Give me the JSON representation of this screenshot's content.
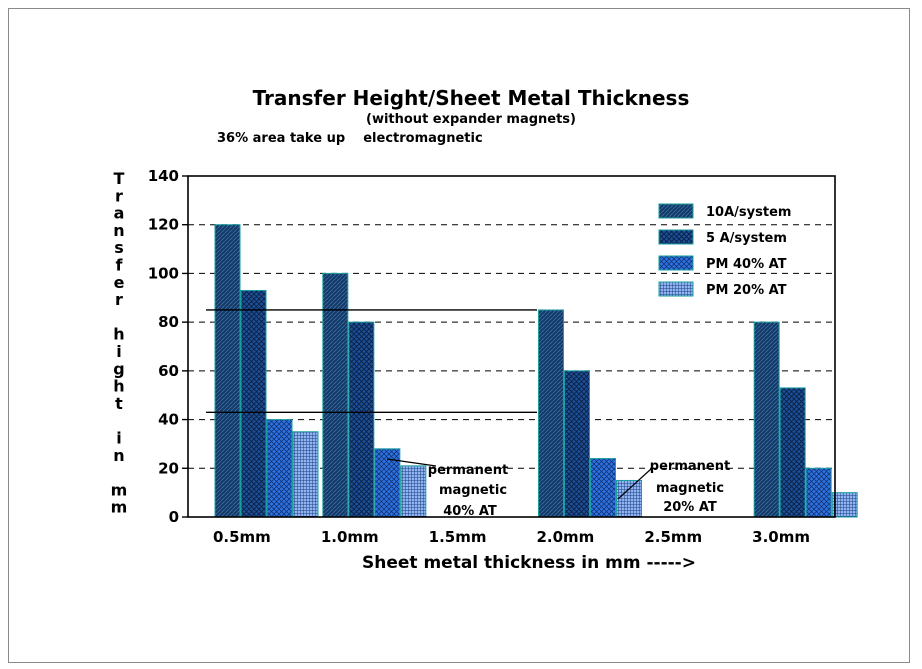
{
  "chart_data": {
    "type": "bar",
    "title": "Transfer Height/Sheet Metal Thickness",
    "subtitle": "(without expander magnets)",
    "subtitle2": "36% area take up    electromagnetic",
    "xlabel": "Sheet metal thickness in mm ----->",
    "ylabel": "Transfer hight in mm",
    "categories": [
      "0.5mm",
      "1.0mm",
      "1.5mm",
      "2.0mm",
      "2.5mm",
      "3.0mm"
    ],
    "ylim": [
      0,
      140
    ],
    "yticks": [
      0,
      20,
      40,
      60,
      80,
      100,
      120,
      140
    ],
    "grid": "horizontal dashed",
    "legend_position": "top-right",
    "series": [
      {
        "name": "10A/system",
        "values": [
          120,
          100,
          null,
          85,
          null,
          80
        ],
        "color": "#143a63",
        "pattern": "dense"
      },
      {
        "name": "5 A/system",
        "values": [
          93,
          80,
          null,
          60,
          null,
          53
        ],
        "color": "#1c4f96",
        "pattern": "cross"
      },
      {
        "name": "PM 40% AT",
        "values": [
          40,
          28,
          null,
          24,
          null,
          20
        ],
        "color": "#2a6ed8",
        "pattern": "light"
      },
      {
        "name": "PM 20% AT",
        "values": [
          35,
          21,
          null,
          15,
          null,
          10
        ],
        "color": "#1e54b0",
        "pattern": "grid"
      }
    ],
    "reference_lines": [
      85,
      43
    ],
    "annotations": [
      {
        "lines": [
          "permanent",
          "magnetic",
          "40% AT"
        ]
      },
      {
        "lines": [
          "permanent",
          "magnetic",
          "20% AT"
        ]
      }
    ]
  }
}
